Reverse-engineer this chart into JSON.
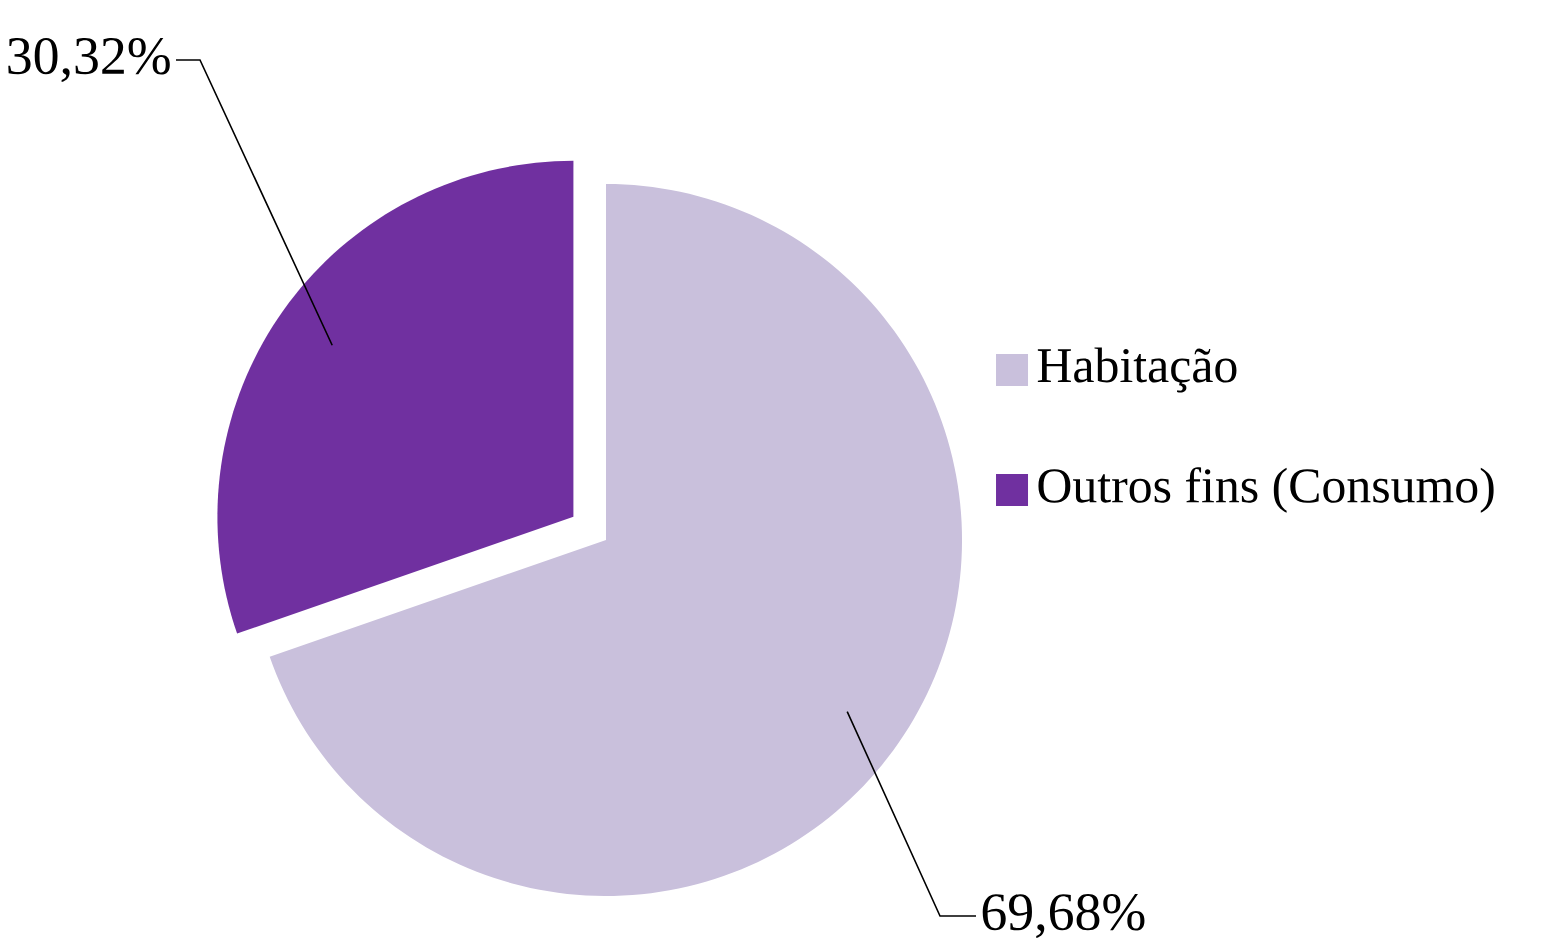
{
  "chart_data": {
    "type": "pie",
    "categories": [
      "Habitação",
      "Outros fins (Consumo)"
    ],
    "values": [
      69.68,
      30.32
    ],
    "colors": [
      "#c9c0dc",
      "#7030a0"
    ],
    "value_labels": [
      "69,68%",
      "30,32%"
    ],
    "legend": "right"
  }
}
